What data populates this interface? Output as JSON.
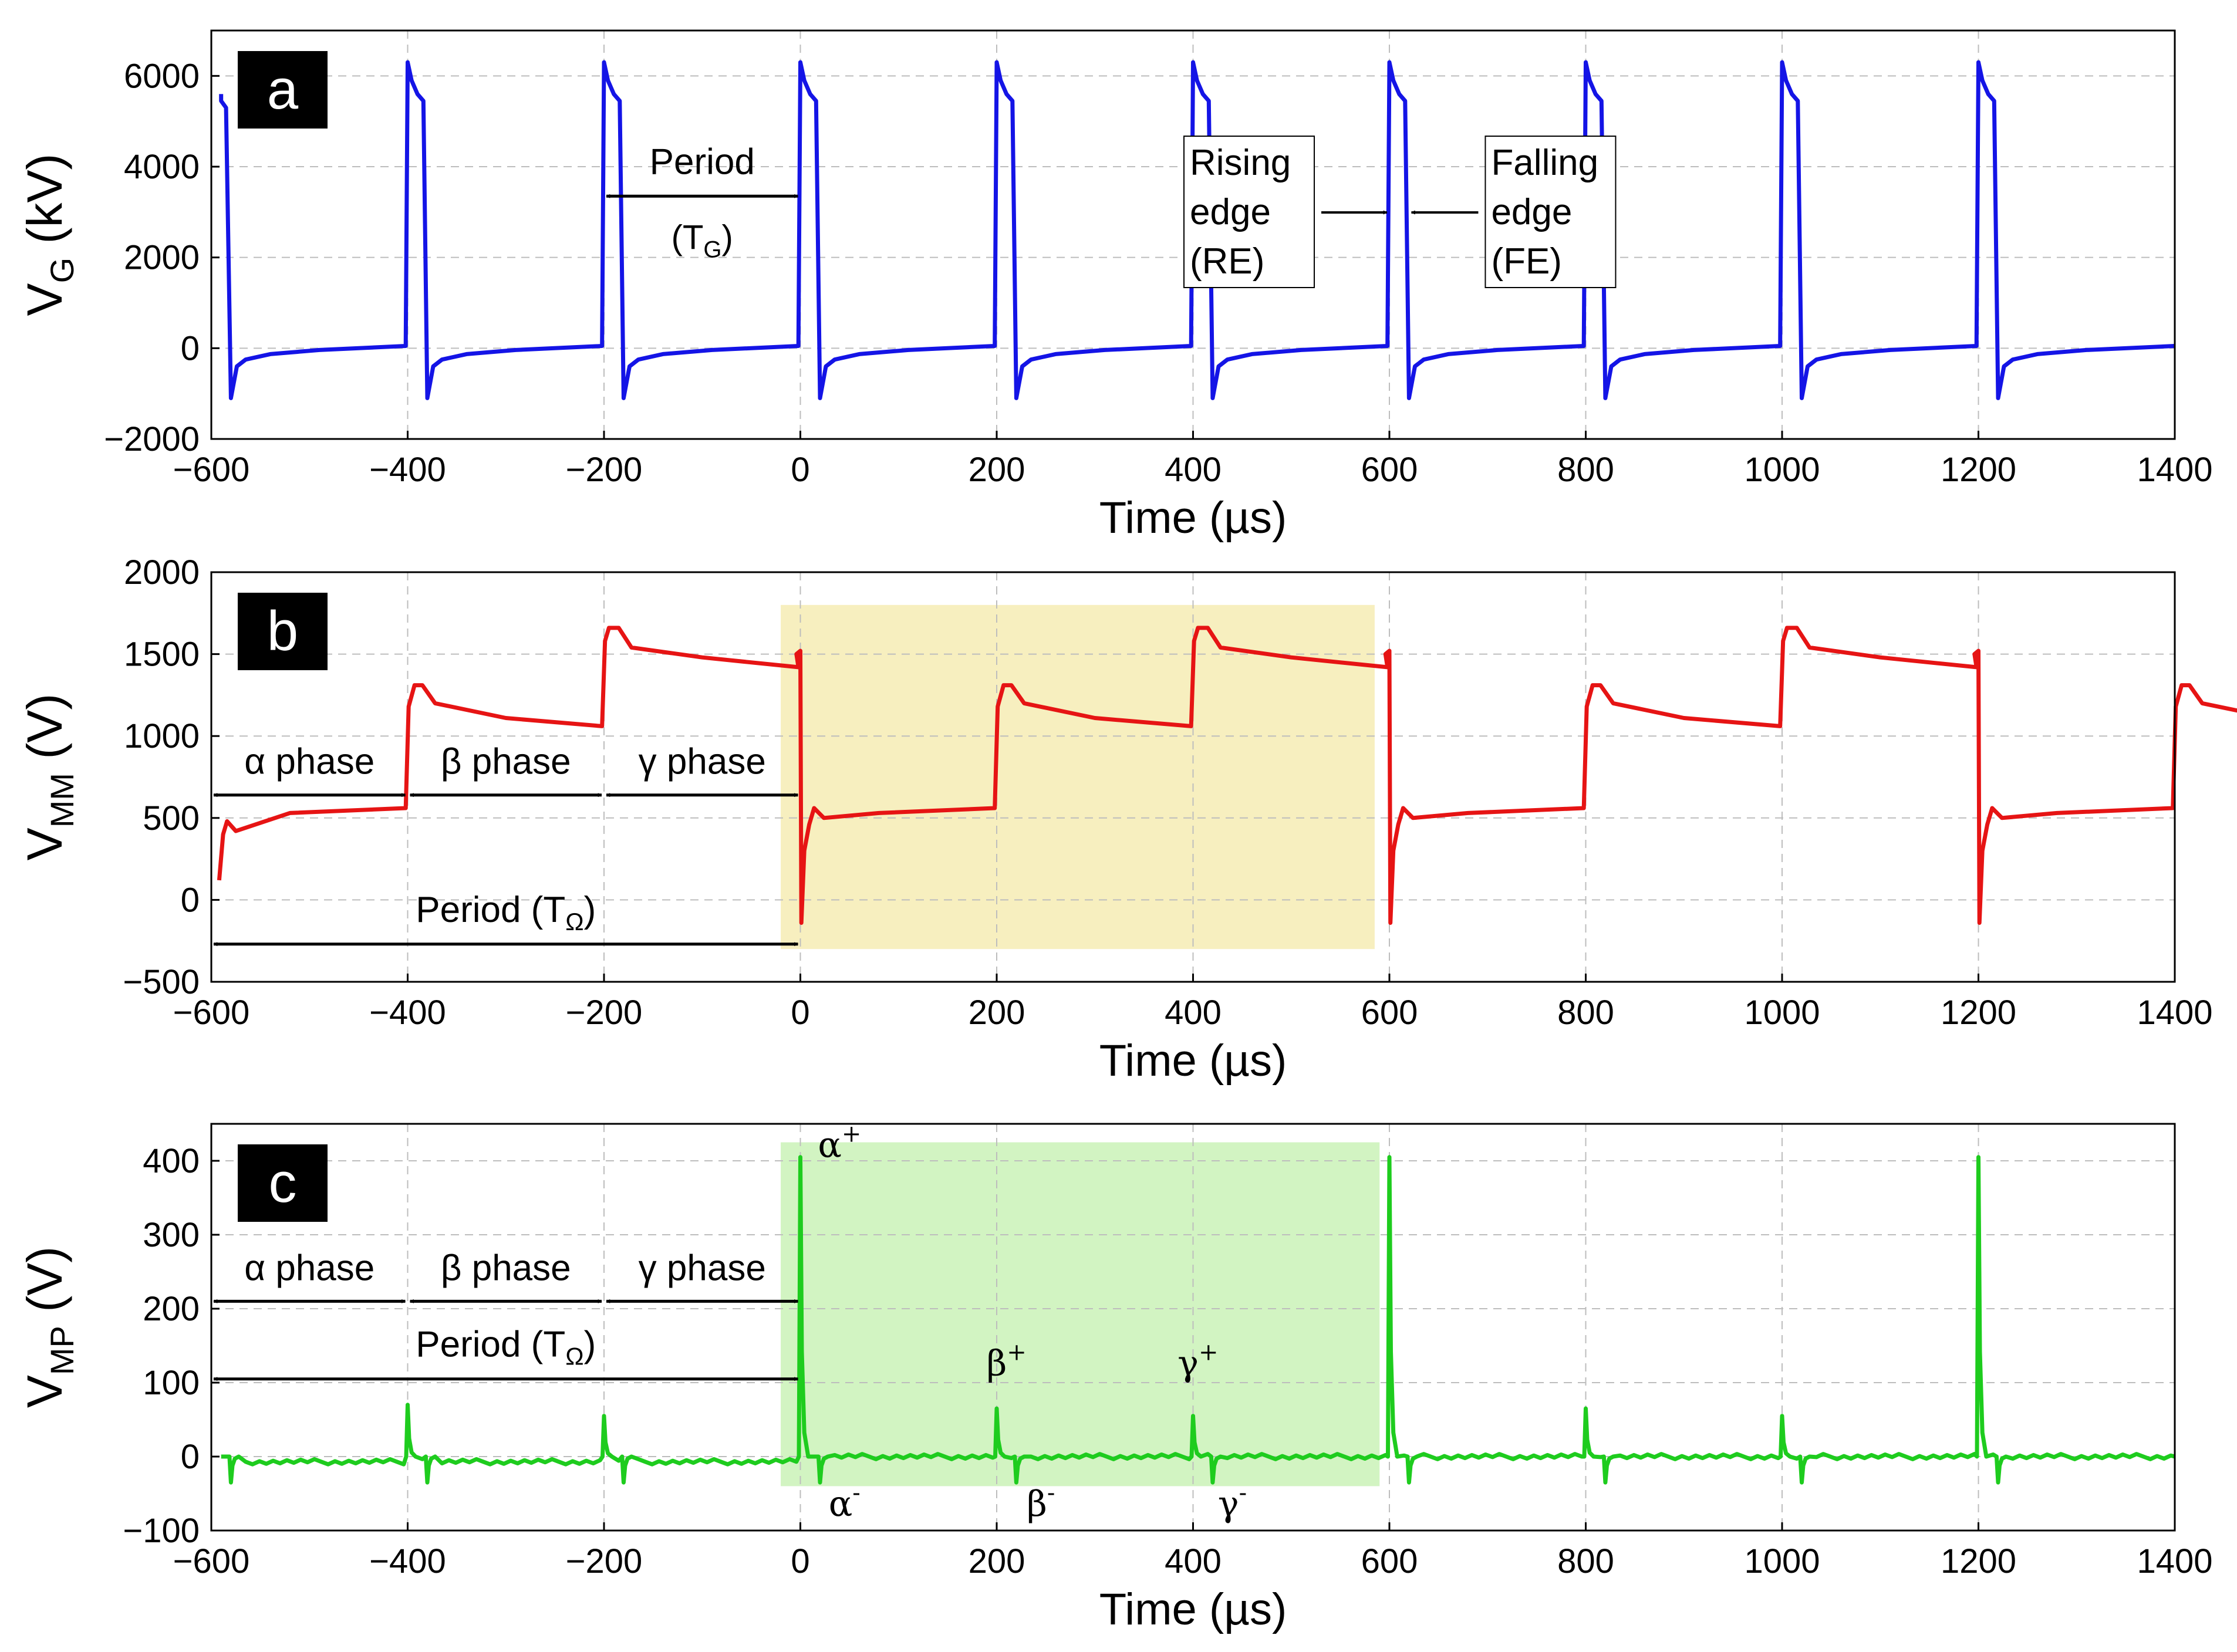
{
  "figure": "Three stacked time-domain voltage plots (a, b, c)",
  "chart_data": [
    {
      "type": "line",
      "panel": "a",
      "title": "",
      "xlabel": "Time (µs)",
      "ylabel": {
        "base": "V",
        "sub": "G",
        "unit": " (kV)"
      },
      "xlim": [
        -600,
        1400
      ],
      "ylim": [
        -2000,
        7000
      ],
      "xticks": [
        -600,
        -400,
        -200,
        0,
        200,
        400,
        600,
        800,
        1000,
        1200,
        1400
      ],
      "yticks": [
        -2000,
        0,
        2000,
        4000,
        6000
      ],
      "grid": true,
      "series": [
        {
          "name": "V_G",
          "color": "#1414e6",
          "period": 200,
          "rising_edge_times": [
            -400,
            -200,
            0,
            200,
            400,
            600,
            800,
            1000,
            1200
          ],
          "falling_edge_offset": 20,
          "on_peak": 6300,
          "on_plateau": 5600,
          "off_undershoot": -1100,
          "off_settle": 50,
          "initial_segment": {
            "start": -590,
            "fall": -580,
            "level": 5600
          }
        }
      ],
      "annotations": [
        {
          "label": "Period",
          "sub_base": "(T",
          "sub": "G",
          "sub_tail": ")",
          "from": -200,
          "to": 0,
          "y": 3350
        },
        {
          "box": [
            "Rising",
            "edge",
            "(RE)"
          ],
          "points_to": 600
        },
        {
          "box": [
            "Falling",
            "edge",
            "(FE)"
          ],
          "points_to": 620
        }
      ]
    },
    {
      "type": "line",
      "panel": "b",
      "title": "",
      "xlabel": "Time (µs)",
      "ylabel": {
        "base": "V",
        "sub": "MM",
        "unit": " (V)"
      },
      "xlim": [
        -600,
        1400
      ],
      "ylim": [
        -500,
        2000
      ],
      "xticks": [
        -600,
        -400,
        -200,
        0,
        200,
        400,
        600,
        800,
        1000,
        1200,
        1400
      ],
      "yticks": [
        -500,
        0,
        500,
        1000,
        1500,
        2000
      ],
      "grid": true,
      "series": [
        {
          "name": "V_MM",
          "color": "#e61414",
          "period": 600,
          "cycle_starts": [
            -600,
            0,
            600,
            1200
          ],
          "phases": [
            {
              "name": "alpha",
              "start_offset": 0,
              "peak": 480,
              "plateau_end": 500
            },
            {
              "name": "beta",
              "start_offset": 200,
              "peak": 1280,
              "plateau_end": 1040
            },
            {
              "name": "gamma",
              "start_offset": 400,
              "peak": 1660,
              "plateau_end": 1420
            }
          ],
          "reset_spike_max": 1520,
          "reset_spike_min": -140
        }
      ],
      "highlight": {
        "from": -20,
        "to": 585,
        "y_from": -300,
        "y_to": 1800,
        "color": "#f7efbf"
      },
      "annotations": [
        {
          "label": "α phase",
          "from": -600,
          "to": -400,
          "y": 640
        },
        {
          "label": "β phase",
          "from": -400,
          "to": -200,
          "y": 640
        },
        {
          "label": "γ phase",
          "from": -200,
          "to": 0,
          "y": 640
        },
        {
          "label": "Period",
          "sub_base": "(T",
          "sub": "Ω",
          "sub_tail": ")",
          "from": -600,
          "to": 0,
          "y": -270
        }
      ]
    },
    {
      "type": "line",
      "panel": "c",
      "title": "",
      "xlabel": "Time (µs)",
      "ylabel": {
        "base": "V",
        "sub": "MP",
        "unit": " (V)"
      },
      "xlim": [
        -600,
        1400
      ],
      "ylim": [
        -100,
        450
      ],
      "xticks": [
        -600,
        -400,
        -200,
        0,
        200,
        400,
        600,
        800,
        1000,
        1200,
        1400
      ],
      "yticks": [
        -100,
        0,
        100,
        200,
        300,
        400
      ],
      "grid": true,
      "series": [
        {
          "name": "V_MP",
          "color": "#1ecc1e",
          "positive_spikes": [
            {
              "t": -400,
              "v": 70
            },
            {
              "t": -200,
              "v": 55
            },
            {
              "t": 0,
              "v": 405
            },
            {
              "t": 200,
              "v": 65
            },
            {
              "t": 400,
              "v": 55
            },
            {
              "t": 600,
              "v": 405
            },
            {
              "t": 800,
              "v": 65
            },
            {
              "t": 1000,
              "v": 55
            },
            {
              "t": 1200,
              "v": 405
            }
          ],
          "negative_spikes": [
            {
              "t": -580,
              "v": -35
            },
            {
              "t": -380,
              "v": -35
            },
            {
              "t": -180,
              "v": -35
            },
            {
              "t": 20,
              "v": -35
            },
            {
              "t": 220,
              "v": -35
            },
            {
              "t": 420,
              "v": -35
            },
            {
              "t": 620,
              "v": -35
            },
            {
              "t": 820,
              "v": -35
            },
            {
              "t": 1020,
              "v": -35
            },
            {
              "t": 1220,
              "v": -35
            }
          ]
        }
      ],
      "highlight": {
        "from": -20,
        "to": 590,
        "y_from": -40,
        "y_to": 425,
        "color": "#d2f4c2"
      },
      "annotations": [
        {
          "label": "α phase",
          "from": -600,
          "to": -400,
          "y": 210
        },
        {
          "label": "β phase",
          "from": -400,
          "to": -200,
          "y": 210
        },
        {
          "label": "γ phase",
          "from": -200,
          "to": 0,
          "y": 210
        },
        {
          "label": "Period",
          "sub_base": "(T",
          "sub": "Ω",
          "sub_tail": ")",
          "from": -600,
          "to": 0,
          "y": 105
        }
      ],
      "point_labels": [
        {
          "base": "α",
          "sup": "+",
          "t": 40,
          "v": 405
        },
        {
          "base": "β",
          "sup": "+",
          "t": 210,
          "v": 110
        },
        {
          "base": "γ",
          "sup": "+",
          "t": 405,
          "v": 110
        },
        {
          "base": "α",
          "sup": "-",
          "t": 45,
          "v": -80
        },
        {
          "base": "β",
          "sup": "-",
          "t": 245,
          "v": -80
        },
        {
          "base": "γ",
          "sup": "-",
          "t": 440,
          "v": -80
        }
      ]
    }
  ]
}
